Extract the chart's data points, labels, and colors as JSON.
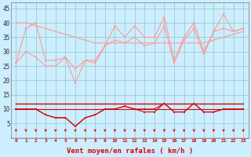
{
  "x": [
    0,
    1,
    2,
    3,
    4,
    5,
    6,
    7,
    8,
    9,
    10,
    11,
    12,
    13,
    14,
    15,
    16,
    17,
    18,
    19,
    20,
    21,
    22,
    23
  ],
  "rafales": [
    26,
    38,
    40,
    27,
    27,
    28,
    19,
    27,
    26,
    32,
    39,
    35,
    39,
    35,
    35,
    42,
    27,
    35,
    40,
    30,
    37,
    43,
    37,
    38
  ],
  "trend_upper": [
    40,
    40,
    39,
    38,
    37,
    36,
    35,
    34,
    33,
    33,
    33,
    33,
    33,
    33,
    33,
    33,
    33,
    33,
    33,
    33,
    34,
    35,
    36,
    37
  ],
  "wind_light": [
    26,
    30,
    28,
    25,
    25,
    28,
    24,
    27,
    27,
    32,
    34,
    33,
    35,
    32,
    33,
    39,
    26,
    34,
    38,
    29,
    37,
    38,
    37,
    38
  ],
  "wind_dark_jagged": [
    10,
    10,
    10,
    8,
    7,
    7,
    4,
    7,
    8,
    10,
    10,
    11,
    10,
    10,
    10,
    12,
    9,
    9,
    12,
    9,
    9,
    10,
    10,
    10
  ],
  "flat_dark1": [
    12,
    12,
    12,
    12,
    12,
    12,
    12,
    12,
    12,
    12,
    12,
    12,
    12,
    12,
    12,
    12,
    12,
    12,
    12,
    12,
    12,
    12,
    12,
    12
  ],
  "flat_dark2": [
    10,
    10,
    10,
    10,
    10,
    10,
    10,
    10,
    10,
    10,
    10,
    10,
    10,
    10,
    10,
    10,
    10,
    10,
    10,
    10,
    10,
    10,
    10,
    10
  ],
  "flat_dark3": [
    10,
    10,
    10,
    10,
    10,
    10,
    10,
    10,
    10,
    10,
    10,
    10,
    10,
    10,
    10,
    10,
    10,
    10,
    10,
    10,
    10,
    10,
    10,
    10
  ],
  "wind_low_jagged": [
    10,
    10,
    10,
    8,
    7,
    7,
    4,
    7,
    8,
    10,
    10,
    11,
    10,
    9,
    9,
    12,
    9,
    9,
    12,
    9,
    9,
    10,
    10,
    10
  ],
  "bg_color": "#cceeff",
  "grid_color": "#99cccc",
  "line_light": "#ff9999",
  "line_dark": "#dd0000",
  "xlabel": "Vent moyen/en rafales ( km/h )",
  "ylim": [
    0,
    47
  ],
  "xlim": [
    -0.5,
    23.5
  ],
  "yticks": [
    5,
    10,
    15,
    20,
    25,
    30,
    35,
    40,
    45
  ]
}
